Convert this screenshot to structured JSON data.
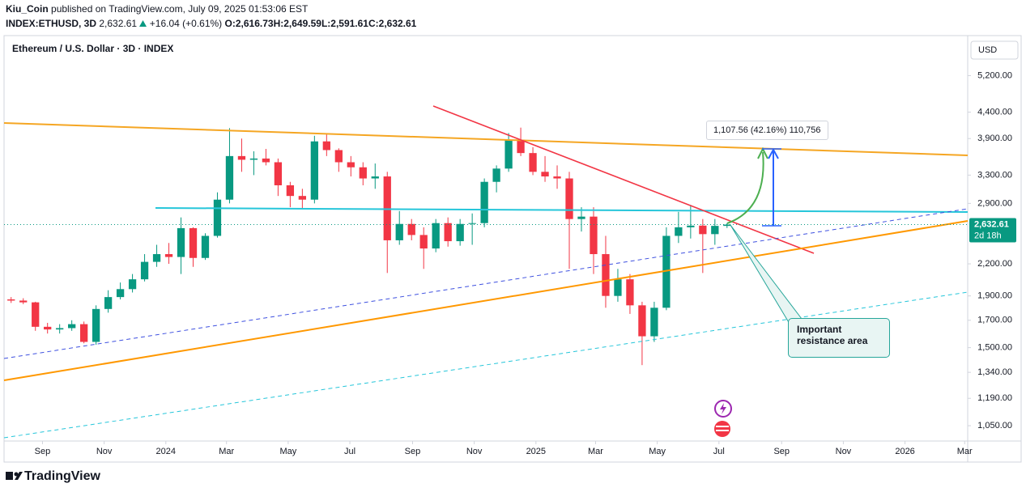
{
  "header": {
    "author": "Kiu_Coin",
    "published": "published on TradingView.com, July 09, 2025 01:53:06 EST",
    "symbol": "INDEX:ETHUSD, 3D",
    "last": "2,632.61",
    "change": "+16.04 (+0.61%)",
    "o": "O:2,616.73",
    "h": "H:2,649.59",
    "l": "L:2,591.61",
    "c": "C:2,632.61"
  },
  "brand": "TradingView",
  "chart_data": {
    "type": "candlestick",
    "title": "Ethereum / U.S. Dollar · 3D · INDEX",
    "currency": "USD",
    "x": [
      "2023-08-01",
      "2023-08-13",
      "2023-08-25",
      "2023-09-06",
      "2023-09-18",
      "2023-09-30",
      "2023-10-12",
      "2023-10-24",
      "2023-11-05",
      "2023-11-17",
      "2023-11-29",
      "2023-12-11",
      "2023-12-23",
      "2024-01-04",
      "2024-01-16",
      "2024-01-28",
      "2024-02-09",
      "2024-02-21",
      "2024-03-04",
      "2024-03-16",
      "2024-03-28",
      "2024-04-09",
      "2024-04-21",
      "2024-05-03",
      "2024-05-15",
      "2024-05-27",
      "2024-06-08",
      "2024-06-20",
      "2024-07-02",
      "2024-07-14",
      "2024-07-26",
      "2024-08-07",
      "2024-08-19",
      "2024-08-31",
      "2024-09-12",
      "2024-09-24",
      "2024-10-06",
      "2024-10-18",
      "2024-10-30",
      "2024-11-11",
      "2024-11-23",
      "2024-12-05",
      "2024-12-17",
      "2024-12-29",
      "2025-01-10",
      "2025-01-22",
      "2025-02-03",
      "2025-02-15",
      "2025-02-27",
      "2025-03-11",
      "2025-03-23",
      "2025-04-04",
      "2025-04-16",
      "2025-04-28",
      "2025-05-10",
      "2025-05-22",
      "2025-06-03",
      "2025-06-15",
      "2025-06-27",
      "2025-07-09"
    ],
    "open": [
      1870,
      1860,
      1845,
      1650,
      1630,
      1640,
      1670,
      1540,
      1790,
      1890,
      1960,
      2050,
      2220,
      2300,
      2270,
      2590,
      2260,
      2500,
      2950,
      3600,
      3540,
      3560,
      3500,
      3150,
      3000,
      2950,
      3850,
      3700,
      3500,
      3420,
      3250,
      3280,
      2450,
      2640,
      2510,
      2360,
      2650,
      2440,
      2640,
      2650,
      3200,
      3400,
      3880,
      3650,
      3350,
      3280,
      3250,
      2700,
      2730,
      2300,
      1900,
      2050,
      1820,
      1580,
      1800,
      2500,
      2600,
      2620,
      2520,
      2616.73
    ],
    "high": [
      1890,
      1880,
      1850,
      1680,
      1670,
      1700,
      1690,
      1820,
      1950,
      2020,
      2100,
      2300,
      2400,
      2420,
      2720,
      2600,
      2530,
      3050,
      4090,
      3900,
      3680,
      3720,
      3560,
      3200,
      3100,
      3950,
      3980,
      3730,
      3600,
      3500,
      3480,
      3350,
      2800,
      2700,
      2600,
      2700,
      2720,
      2700,
      2770,
      3250,
      3450,
      4000,
      4100,
      3750,
      3600,
      3450,
      3350,
      2850,
      2850,
      2500,
      2150,
      2100,
      1850,
      1850,
      2600,
      2790,
      2880,
      2700,
      2700,
      2649.59
    ],
    "low": [
      1840,
      1830,
      1620,
      1600,
      1600,
      1620,
      1530,
      1520,
      1760,
      1870,
      1930,
      2030,
      2170,
      2200,
      2100,
      2170,
      2240,
      2480,
      2900,
      3350,
      3300,
      3450,
      3000,
      2850,
      2820,
      2900,
      3600,
      3350,
      3280,
      3150,
      3100,
      2110,
      2400,
      2450,
      2150,
      2320,
      2380,
      2390,
      2400,
      2600,
      3050,
      3350,
      3600,
      3300,
      3200,
      3100,
      2150,
      2550,
      2100,
      1800,
      1850,
      1750,
      1385,
      1540,
      1780,
      2420,
      2470,
      2110,
      2400,
      2591.61
    ],
    "close": [
      1860,
      1845,
      1650,
      1630,
      1640,
      1670,
      1540,
      1790,
      1890,
      1960,
      2050,
      2220,
      2300,
      2270,
      2590,
      2260,
      2500,
      2950,
      3600,
      3540,
      3560,
      3500,
      3150,
      3000,
      2950,
      3850,
      3700,
      3500,
      3420,
      3250,
      3280,
      2450,
      2640,
      2510,
      2360,
      2650,
      2440,
      2640,
      2650,
      3200,
      3400,
      3880,
      3650,
      3350,
      3280,
      3250,
      2700,
      2730,
      2300,
      1900,
      2050,
      1820,
      1580,
      1800,
      2500,
      2600,
      2620,
      2520,
      2616.73,
      2632.61
    ],
    "up_color": "#089981",
    "down_color": "#f23645",
    "log_scale": true,
    "grid": false,
    "ylim": [
      979,
      6220
    ],
    "yticks": [
      {
        "value": 5200,
        "label": "5,200.00"
      },
      {
        "value": 4400,
        "label": "4,400.00"
      },
      {
        "value": 3900,
        "label": "3,900.00"
      },
      {
        "value": 3300,
        "label": "3,300.00"
      },
      {
        "value": 2900,
        "label": "2,900.00"
      },
      {
        "value": 2200,
        "label": "2,200.00"
      },
      {
        "value": 1900,
        "label": "1,900.00"
      },
      {
        "value": 1700,
        "label": "1,700.00"
      },
      {
        "value": 1500,
        "label": "1,500.00"
      },
      {
        "value": 1340,
        "label": "1,340.00"
      },
      {
        "value": 1190,
        "label": "1,190.00"
      },
      {
        "value": 1050,
        "label": "1,050.00"
      }
    ],
    "xlim": [
      "2023-07-25",
      "2026-03-04"
    ],
    "xticks": [
      {
        "value": "2023-09-01",
        "label": "Sep"
      },
      {
        "value": "2023-11-01",
        "label": "Nov"
      },
      {
        "value": "2024-01-01",
        "label": "2024"
      },
      {
        "value": "2024-03-01",
        "label": "Mar"
      },
      {
        "value": "2024-05-01",
        "label": "May"
      },
      {
        "value": "2024-07-01",
        "label": "Jul"
      },
      {
        "value": "2024-09-01",
        "label": "Sep"
      },
      {
        "value": "2024-11-01",
        "label": "Nov"
      },
      {
        "value": "2025-01-01",
        "label": "2025"
      },
      {
        "value": "2025-03-01",
        "label": "Mar"
      },
      {
        "value": "2025-05-01",
        "label": "May"
      },
      {
        "value": "2025-07-01",
        "label": "Jul"
      },
      {
        "value": "2025-09-01",
        "label": "Sep"
      },
      {
        "value": "2025-11-01",
        "label": "Nov"
      },
      {
        "value": "2026-01-01",
        "label": "2026"
      },
      {
        "value": "2026-03-01",
        "label": "Mar"
      }
    ],
    "last_price": {
      "value": 2632.61,
      "label": "2,632.61"
    },
    "countdown": "2d 18h",
    "measure_label": "1,107.56 (42.16%) 110,756",
    "annotation": "Important resistance area"
  }
}
